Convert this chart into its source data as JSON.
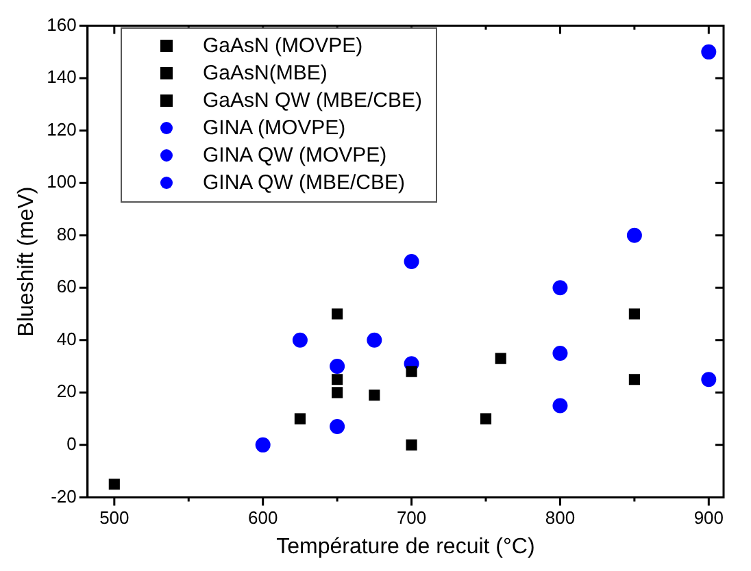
{
  "chart_data": {
    "type": "scatter",
    "xlabel": "Température de recuit (°C)",
    "ylabel": "Blueshift (meV)",
    "xlim": [
      482,
      910
    ],
    "ylim": [
      -20,
      160
    ],
    "xticks": [
      500,
      {
        "value": 550,
        "label": null
      },
      600,
      {
        "value": 650,
        "label": null
      },
      700,
      {
        "value": 750,
        "label": null
      },
      800,
      {
        "value": 850,
        "label": null
      },
      900
    ],
    "yticks": [
      -20,
      0,
      20,
      40,
      60,
      80,
      100,
      120,
      140,
      160
    ],
    "grid": false,
    "legend": "top left",
    "series": [
      {
        "name": "GaAsN (MOVPE)",
        "color": "#000000",
        "marker": "square",
        "x": [
          625,
          650,
          650
        ],
        "values": [
          10,
          25,
          20
        ]
      },
      {
        "name": "GaAsN(MBE)",
        "color": "#000000",
        "marker": "square",
        "x": [
          500,
          650,
          700,
          700,
          850
        ],
        "values": [
          -15,
          50,
          28,
          0,
          50
        ]
      },
      {
        "name": "GaAsN QW (MBE/CBE)",
        "color": "#000000",
        "marker": "square",
        "x": [
          675,
          750,
          760,
          850
        ],
        "values": [
          19,
          10,
          33,
          25
        ]
      },
      {
        "name": "GINA (MOVPE)",
        "color": "#0000ff",
        "marker": "circle",
        "x": [
          600,
          625,
          700
        ],
        "values": [
          0,
          40,
          70
        ]
      },
      {
        "name": "GINA QW (MOVPE)",
        "color": "#0000ff",
        "marker": "circle",
        "x": [
          650,
          800,
          900
        ],
        "values": [
          7,
          15,
          25
        ]
      },
      {
        "name": "GINA QW (MBE/CBE)",
        "color": "#0000ff",
        "marker": "circle",
        "x": [
          650,
          675,
          700,
          800,
          800,
          850,
          900
        ],
        "values": [
          30,
          40,
          31,
          60,
          35,
          80,
          150
        ]
      }
    ]
  }
}
